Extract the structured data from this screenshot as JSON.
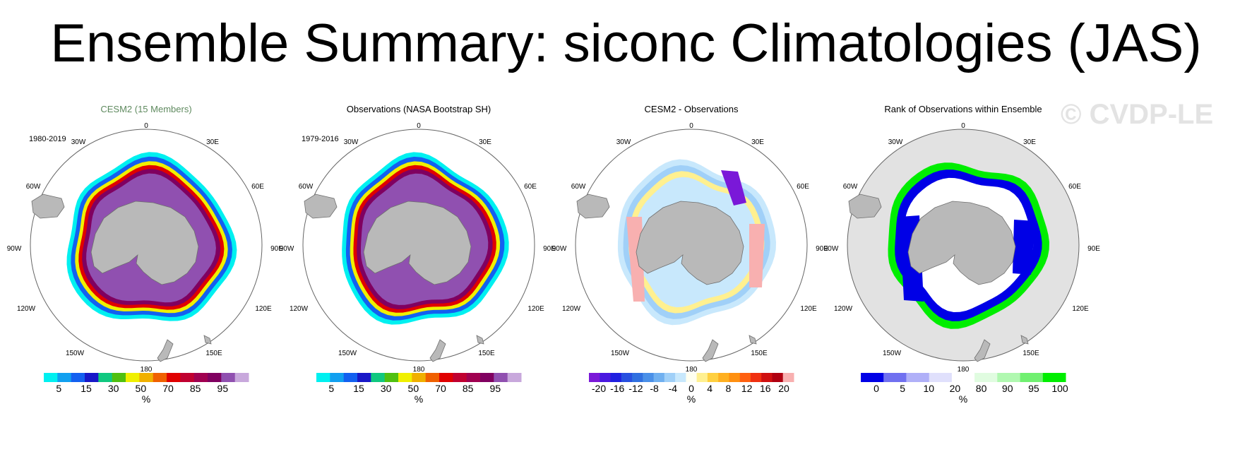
{
  "figure": {
    "title": "Ensemble Summary: siconc Climatologies (JAS)",
    "watermark": "© CVDP-LE"
  },
  "colors": {
    "land": "#b9b9b9",
    "land_edge": "#6f6f6f",
    "ocean": "#ffffff",
    "rank_ocean": "#e2e2e2",
    "panel1_title": "#5f8a5f",
    "rank_low": "#0000e6",
    "rank_high": "#00ee00"
  },
  "labels": {
    "lon_0": "0",
    "lon_30w": "30W",
    "lon_30e": "30E",
    "lon_60w": "60W",
    "lon_60e": "60E",
    "lon_90w": "90W",
    "lon_90e": "90E",
    "lon_120w": "120W",
    "lon_120e": "120E",
    "lon_150w": "150W",
    "lon_150e": "150E",
    "lon_180": "180"
  },
  "chart_data": [
    {
      "type": "heatmap",
      "title": "CESM2 (15 Members)",
      "period": "1980-2019",
      "field": "sea ice concentration",
      "colorbar": {
        "unit": "%",
        "tick_labels": [
          "5",
          "15",
          "30",
          "50",
          "70",
          "85",
          "95"
        ],
        "colors": [
          "#00f0f0",
          "#11a0f0",
          "#1360f0",
          "#1818c8",
          "#10c880",
          "#50c010",
          "#f0f000",
          "#f0b000",
          "#f06000",
          "#e00000",
          "#c00030",
          "#a00050",
          "#800060",
          "#9050b0",
          "#c8a8dc"
        ]
      }
    },
    {
      "type": "heatmap",
      "title": "Observations (NASA Bootstrap SH)",
      "period": "1979-2016",
      "field": "sea ice concentration",
      "colorbar": {
        "unit": "%",
        "tick_labels": [
          "5",
          "15",
          "30",
          "50",
          "70",
          "85",
          "95"
        ],
        "colors": [
          "#00f0f0",
          "#11a0f0",
          "#1360f0",
          "#1818c8",
          "#10c880",
          "#50c010",
          "#f0f000",
          "#f0b000",
          "#f06000",
          "#e00000",
          "#c00030",
          "#a00050",
          "#800060",
          "#9050b0",
          "#c8a8dc"
        ]
      }
    },
    {
      "type": "heatmap",
      "title": "CESM2 - Observations",
      "field": "sea ice concentration difference",
      "colorbar": {
        "unit": "%",
        "tick_labels": [
          "-20",
          "-16",
          "-12",
          "-8",
          "-4",
          "0",
          "4",
          "8",
          "12",
          "16",
          "20"
        ],
        "colors": [
          "#7a18d8",
          "#4a18e0",
          "#2020e0",
          "#2850e0",
          "#3070e0",
          "#4a90e8",
          "#70b0f0",
          "#a0d0f8",
          "#c8e8fc",
          "#fffff0",
          "#fff090",
          "#ffd040",
          "#ffb020",
          "#ff9010",
          "#ff6010",
          "#f03010",
          "#d01010",
          "#b00010",
          "#f8b0b0"
        ]
      }
    },
    {
      "type": "heatmap",
      "title": "Rank of Observations within Ensemble",
      "field": "rank of observations within ensemble",
      "colorbar": {
        "unit": "%",
        "tick_labels": [
          "0",
          "5",
          "10",
          "20",
          "80",
          "90",
          "95",
          "100"
        ],
        "colors": [
          "#0000e6",
          "#7070f0",
          "#b0b0f8",
          "#e0e0fc",
          "#ffffff",
          "#e0fce0",
          "#b0f8b0",
          "#70f070",
          "#00ee00"
        ]
      }
    }
  ]
}
